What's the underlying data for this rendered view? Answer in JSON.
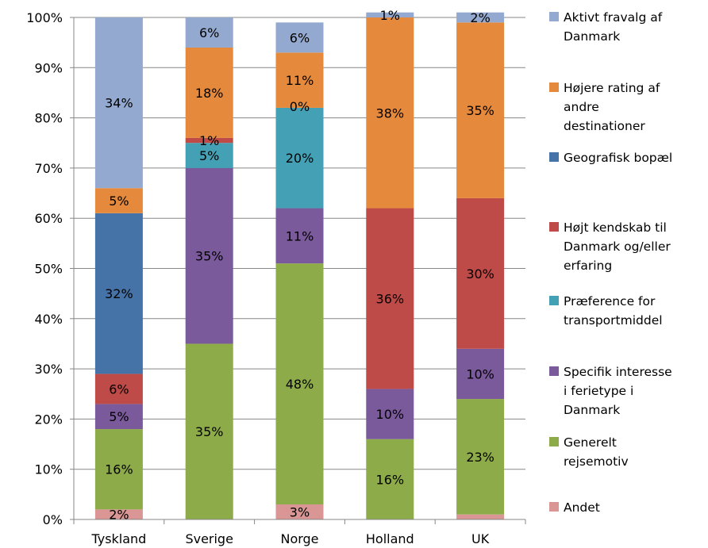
{
  "chart_data": {
    "type": "bar",
    "stacked": true,
    "percent": true,
    "categories": [
      "Tyskland",
      "Sverige",
      "Norge",
      "Holland",
      "UK"
    ],
    "ylim": [
      0,
      100
    ],
    "yticks": [
      "0%",
      "10%",
      "20%",
      "30%",
      "40%",
      "50%",
      "60%",
      "70%",
      "80%",
      "90%",
      "100%"
    ],
    "grid": true,
    "legend_position": "right",
    "series": [
      {
        "name": "Andet",
        "color": "#D99694",
        "values": [
          2,
          0,
          3,
          0,
          1
        ],
        "labels": [
          "2%",
          "",
          "3%",
          "",
          ""
        ]
      },
      {
        "name": "Generelt rejsemotiv",
        "color": "#8EAB49",
        "values": [
          16,
          35,
          48,
          16,
          23
        ],
        "labels": [
          "16%",
          "35%",
          "48%",
          "16%",
          "23%"
        ]
      },
      {
        "name": "Specifik interesse i ferietype i Danmark",
        "color": "#7A5A9A",
        "values": [
          5,
          35,
          11,
          10,
          10
        ],
        "labels": [
          "5%",
          "35%",
          "11%",
          "10%",
          "10%"
        ]
      },
      {
        "name": "Præference for transportmiddel",
        "color": "#43A0B5",
        "values": [
          0,
          5,
          20,
          0,
          0
        ],
        "labels": [
          "",
          "5%",
          "20%",
          "",
          ""
        ]
      },
      {
        "name": "Højt kendskab til Danmark og/eller erfaring",
        "color": "#BE4B48",
        "values": [
          6,
          1,
          0,
          36,
          30
        ],
        "labels": [
          "6%",
          "1%",
          "",
          "36%",
          "30%"
        ]
      },
      {
        "name": "Geografisk bopæl",
        "color": "#4572A7",
        "values": [
          32,
          0,
          0,
          0,
          0
        ],
        "labels": [
          "32%",
          "",
          "",
          "",
          ""
        ]
      },
      {
        "name": "Højere rating af andre destinationer",
        "color": "#E58A3C",
        "values": [
          5,
          18,
          11,
          38,
          35
        ],
        "labels": [
          "5%",
          "18%",
          "11%",
          "38%",
          "35%"
        ]
      },
      {
        "name": "Aktivt fravalg af Danmark",
        "color": "#93A9CF",
        "values": [
          34,
          6,
          6,
          1,
          2
        ],
        "labels": [
          "34%",
          "6%",
          "6%",
          "1%",
          "2%"
        ]
      }
    ],
    "extra_labels": [
      {
        "category_index": 2,
        "text": "0%"
      }
    ]
  },
  "legend": {
    "items": [
      {
        "lines": [
          "Aktivt fravalg af",
          "Danmark"
        ],
        "color": "#93A9CF"
      },
      {
        "lines": [
          "Højere rating af",
          "andre",
          "destinationer"
        ],
        "color": "#E58A3C"
      },
      {
        "lines": [
          "Geografisk bopæl"
        ],
        "color": "#4572A7"
      },
      {
        "lines": [
          "Højt kendskab til",
          "Danmark og/eller",
          "erfaring"
        ],
        "color": "#BE4B48"
      },
      {
        "lines": [
          "Præference for",
          "transportmiddel"
        ],
        "color": "#43A0B5"
      },
      {
        "lines": [
          "Specifik interesse",
          "i ferietype i",
          "Danmark"
        ],
        "color": "#7A5A9A"
      },
      {
        "lines": [
          "Generelt",
          "rejsemotiv"
        ],
        "color": "#8EAB49"
      },
      {
        "lines": [
          "Andet"
        ],
        "color": "#D99694"
      }
    ]
  }
}
